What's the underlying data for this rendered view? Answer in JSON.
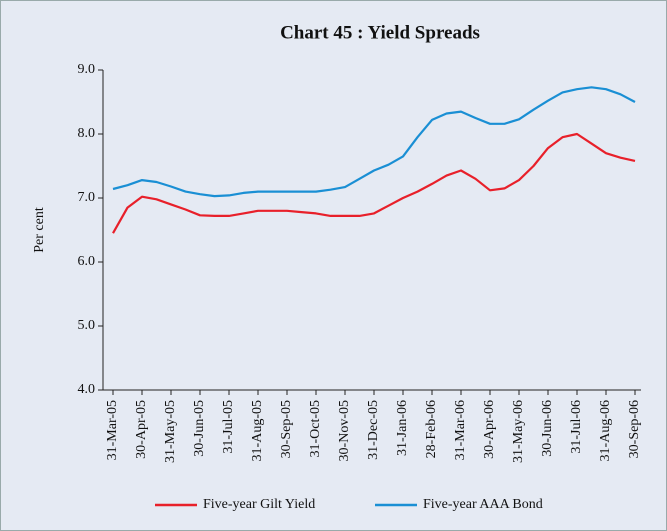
{
  "chart_data": {
    "type": "line",
    "title": "Chart  45 : Yield Spreads",
    "y_label": "Per cent",
    "categories": [
      "31-Mar-05",
      null,
      "30-Apr-05",
      null,
      "31-May-05",
      null,
      "30-Jun-05",
      null,
      "31-Jul-05",
      null,
      "31-Aug-05",
      null,
      "30-Sep-05",
      null,
      "31-Oct-05",
      null,
      "30-Nov-05",
      null,
      "31-Dec-05",
      null,
      "31-Jan-06",
      null,
      "28-Feb-06",
      null,
      "31-Mar-06",
      null,
      "30-Apr-06",
      null,
      "31-May-06",
      null,
      "30-Jun-06",
      null,
      "31-Jul-06",
      null,
      "31-Aug-06",
      null,
      "30-Sep-06"
    ],
    "series": [
      {
        "name": "Five-year Gilt Yield",
        "color": "#e8202a",
        "values": [
          6.45,
          6.85,
          7.02,
          6.98,
          6.9,
          6.82,
          6.73,
          6.72,
          6.72,
          6.76,
          6.8,
          6.8,
          6.8,
          6.78,
          6.76,
          6.72,
          6.72,
          6.72,
          6.76,
          6.88,
          7.0,
          7.1,
          7.22,
          7.35,
          7.43,
          7.3,
          7.12,
          7.15,
          7.28,
          7.5,
          7.78,
          7.95,
          8.0,
          7.85,
          7.7,
          7.63,
          7.58
        ]
      },
      {
        "name": "Five-year AAA Bond",
        "color": "#1a8fd4",
        "values": [
          7.14,
          7.2,
          7.28,
          7.25,
          7.18,
          7.1,
          7.06,
          7.03,
          7.04,
          7.08,
          7.1,
          7.1,
          7.1,
          7.1,
          7.1,
          7.13,
          7.17,
          7.3,
          7.43,
          7.52,
          7.65,
          7.95,
          8.22,
          8.32,
          8.35,
          8.25,
          8.16,
          8.16,
          8.23,
          8.38,
          8.52,
          8.65,
          8.7,
          8.73,
          8.7,
          8.62,
          8.5
        ]
      }
    ],
    "ylim": [
      4,
      9
    ],
    "yticks": [
      {
        "value": 4,
        "label": "4.0"
      },
      {
        "value": 5,
        "label": "5.0"
      },
      {
        "value": 6,
        "label": "6.0"
      },
      {
        "value": 7,
        "label": "7.0"
      },
      {
        "value": 8,
        "label": "8.0"
      },
      {
        "value": 9,
        "label": "9.0"
      }
    ],
    "legend": "bottom"
  }
}
